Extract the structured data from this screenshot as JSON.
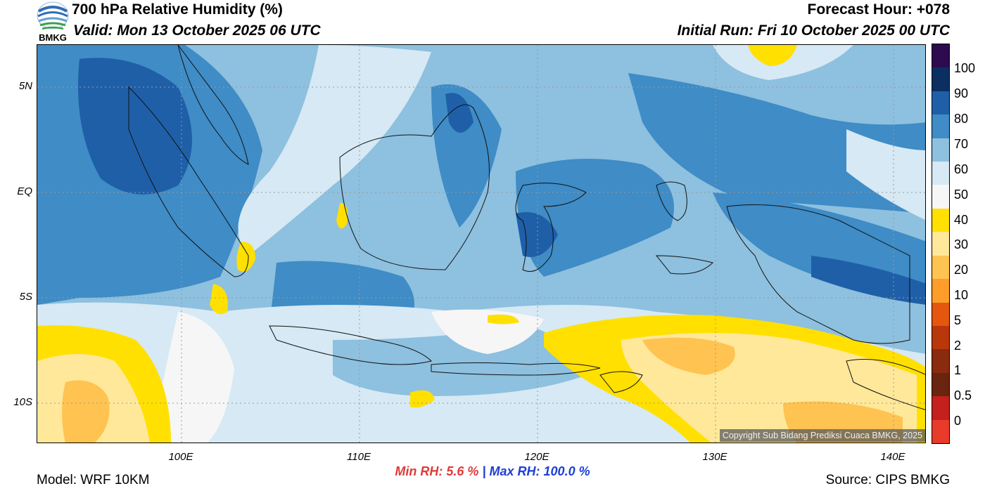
{
  "header": {
    "title": "700 hPa Relative Humidity (%)",
    "valid": "Valid: Mon 13 October 2025 06 UTC",
    "forecast_hour": "Forecast Hour: +078",
    "initial_run": "Initial Run: Fri 10 October 2025 00 UTC"
  },
  "logo": {
    "text": "BMKG",
    "icon": "bmkg-logo-icon"
  },
  "axes": {
    "lat_labels": [
      "5N",
      "EQ",
      "5S",
      "10S"
    ],
    "lon_labels": [
      "100E",
      "110E",
      "120E",
      "130E",
      "140E"
    ]
  },
  "colorbar": {
    "labels": [
      "100",
      "90",
      "80",
      "70",
      "60",
      "50",
      "40",
      "30",
      "20",
      "10",
      "5",
      "2",
      "1",
      "0.5",
      "0"
    ],
    "colors": [
      "#2e0a4e",
      "#0c2f63",
      "#1f5fa8",
      "#3f8cc6",
      "#8ec0df",
      "#d6e9f4",
      "#f6f6f6",
      "#ffe000",
      "#ffe89a",
      "#ffc352",
      "#ff9d2a",
      "#e5560e",
      "#b8380b",
      "#8a2a0e",
      "#6b2410",
      "#c4201d",
      "#e83b2c"
    ]
  },
  "stats": {
    "min_label": "Min RH:",
    "min_value": "5.6 %",
    "separator": "|",
    "max_label": "Max RH:",
    "max_value": "100.0 %",
    "min_color": "#e03a3a",
    "max_color": "#1e3fd6"
  },
  "copyright": "Copyright Sub Bidang Prediksi Cuaca BMKG, 2025",
  "footer": {
    "model": "Model: WRF 10KM",
    "source": "Source: CIPS BMKG"
  }
}
